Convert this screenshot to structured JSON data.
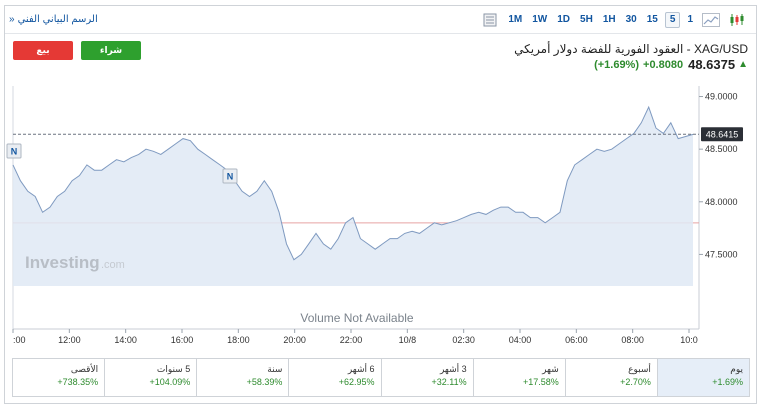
{
  "toolbar": {
    "tech_chart_link": "الرسم البياني الفني",
    "tech_chart_chevron": "»",
    "timeframes": [
      "1M",
      "1W",
      "1D",
      "5H",
      "1H",
      "30",
      "15",
      "5",
      "1"
    ],
    "active_timeframe": "5",
    "icons": [
      "table-icon",
      "area-chart-icon",
      "candlestick-icon"
    ]
  },
  "actions": {
    "sell_label": "بيع",
    "buy_label": "شراء"
  },
  "instrument": {
    "title": "XAG/USD - العقود الفورية للفضة دولار أمريكي",
    "price": "48.6375",
    "change": "+0.8080",
    "change_pct": "(+1.69%)"
  },
  "chart_data": {
    "type": "area",
    "x_ticks": [
      ":00",
      "12:00",
      "14:00",
      "16:00",
      "18:00",
      "20:00",
      "22:00",
      "10/8",
      "02:30",
      "04:00",
      "06:00",
      "08:00",
      "10:0"
    ],
    "y_ticks": [
      "49.0000",
      "48.5000",
      "48.0000",
      "47.5000"
    ],
    "ylim": [
      47.2,
      49.1
    ],
    "last_price_label": "48.6415",
    "reference_line": 47.8,
    "watermark": "Investing",
    "watermark_suffix": ".com",
    "volume_note": "Volume Not Available",
    "news_markers": [
      "N",
      "N"
    ],
    "series": [
      {
        "values": [
          48.35,
          48.2,
          48.1,
          48.05,
          47.9,
          47.95,
          48.05,
          48.1,
          48.2,
          48.25,
          48.35,
          48.3,
          48.3,
          48.35,
          48.4,
          48.38,
          48.42,
          48.45,
          48.5,
          48.48,
          48.45,
          48.5,
          48.55,
          48.6,
          48.58,
          48.5,
          48.45,
          48.4,
          48.35,
          48.3,
          48.2,
          48.1,
          48.05,
          48.1,
          48.2,
          48.1,
          47.9,
          47.6,
          47.45,
          47.5,
          47.6,
          47.7,
          47.6,
          47.55,
          47.65,
          47.8,
          47.85,
          47.65,
          47.6,
          47.55,
          47.6,
          47.65,
          47.65,
          47.7,
          47.72,
          47.7,
          47.75,
          47.8,
          47.78,
          47.8,
          47.82,
          47.85,
          47.88,
          47.9,
          47.88,
          47.92,
          47.95,
          47.95,
          47.9,
          47.9,
          47.85,
          47.85,
          47.8,
          47.85,
          47.9,
          48.2,
          48.35,
          48.4,
          48.45,
          48.5,
          48.48,
          48.5,
          48.55,
          48.6,
          48.65,
          48.75,
          48.9,
          48.7,
          48.65,
          48.75,
          48.6,
          48.62,
          48.64
        ]
      }
    ]
  },
  "performance": [
    {
      "label": "يوم",
      "value": "+1.69%",
      "active": true
    },
    {
      "label": "أسبوع",
      "value": "+2.70%",
      "active": false
    },
    {
      "label": "شهر",
      "value": "+17.58%",
      "active": false
    },
    {
      "label": "3 أشهر",
      "value": "+32.11%",
      "active": false
    },
    {
      "label": "6 أشهر",
      "value": "+62.95%",
      "active": false
    },
    {
      "label": "سنة",
      "value": "+58.39%",
      "active": false
    },
    {
      "label": "5 سنوات",
      "value": "+104.09%",
      "active": false
    },
    {
      "label": "الأقصى",
      "value": "+738.35%",
      "active": false
    }
  ],
  "colors": {
    "line": "#7f9ac0",
    "area": "#dfe9f5",
    "reference": "#e8a3a3",
    "positive": "#2e8b2e",
    "sell": "#e53935",
    "buy": "#2ea02e"
  }
}
